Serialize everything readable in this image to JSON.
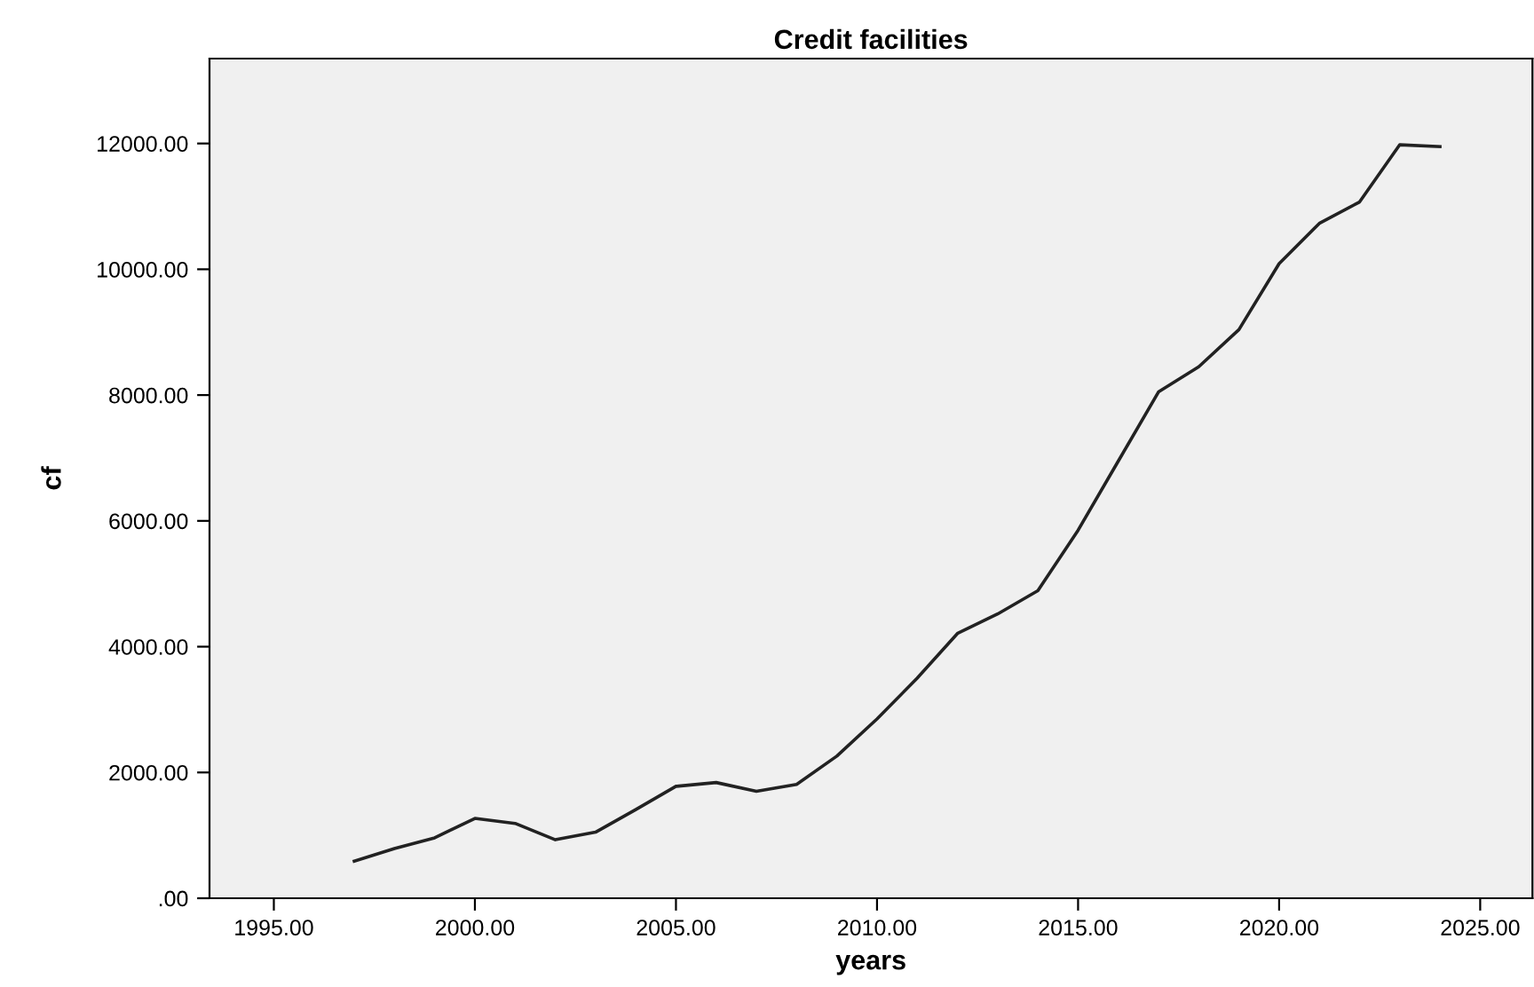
{
  "chart_data": {
    "type": "line",
    "title": "Credit facilities",
    "xlabel": "years",
    "ylabel": "cf",
    "x": [
      1997,
      1998,
      1999,
      2000,
      2001,
      2002,
      2003,
      2004,
      2005,
      2006,
      2007,
      2008,
      2009,
      2010,
      2011,
      2012,
      2013,
      2014,
      2015,
      2016,
      2017,
      2018,
      2019,
      2020,
      2021,
      2022,
      2023,
      2024
    ],
    "series": [
      {
        "color": "#222222",
        "values": [
          590,
          790,
          960,
          1270,
          1190,
          930,
          1050,
          1410,
          1780,
          1840,
          1700,
          1810,
          2260,
          2850,
          3500,
          4210,
          4520,
          4890,
          5850,
          6950,
          8050,
          8450,
          9040,
          10090,
          10730,
          11070,
          11980,
          11950
        ]
      }
    ],
    "xlim": [
      1993.4,
      2026.3
    ],
    "ylim": [
      0,
      13350
    ],
    "xticks": [
      {
        "value": 1995,
        "label": "1995.00"
      },
      {
        "value": 2000,
        "label": "2000.00"
      },
      {
        "value": 2005,
        "label": "2005.00"
      },
      {
        "value": 2010,
        "label": "2010.00"
      },
      {
        "value": 2015,
        "label": "2015.00"
      },
      {
        "value": 2020,
        "label": "2020.00"
      },
      {
        "value": 2025,
        "label": "2025.00"
      }
    ],
    "yticks": [
      {
        "value": 0,
        "label": ".00"
      },
      {
        "value": 2000,
        "label": "2000.00"
      },
      {
        "value": 4000,
        "label": "4000.00"
      },
      {
        "value": 6000,
        "label": "6000.00"
      },
      {
        "value": 8000,
        "label": "8000.00"
      },
      {
        "value": 10000,
        "label": "10000.00"
      },
      {
        "value": 12000,
        "label": "12000.00"
      }
    ],
    "grid": false,
    "marker": "none",
    "line_style": "solid"
  }
}
